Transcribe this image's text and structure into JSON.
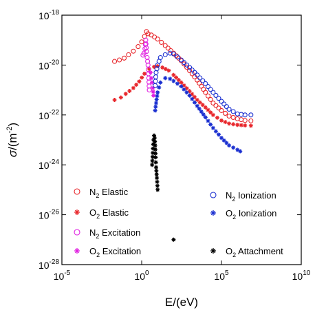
{
  "chart_data": {
    "type": "scatter",
    "xlabel": "E/(eV)",
    "ylabel_symbol": "σ",
    "ylabel_unit": "/(m",
    "ylabel_exp": "-2",
    "ylabel_close": ")",
    "xscale": "log",
    "yscale": "log",
    "xlim": [
      1e-05,
      10000000000
    ],
    "ylim": [
      1e-28,
      1e-18
    ],
    "grid": false,
    "legend_position": "bottom",
    "xticks": [
      {
        "value": 1e-05,
        "base": "10",
        "exp": "-5"
      },
      {
        "value": 1,
        "base": "10",
        "exp": "0"
      },
      {
        "value": 100000,
        "base": "10",
        "exp": "5"
      },
      {
        "value": 10000000000,
        "base": "10",
        "exp": "10"
      }
    ],
    "yticks": [
      {
        "value": 1e-18,
        "base": "10",
        "exp": "-18"
      },
      {
        "value": 1e-20,
        "base": "10",
        "exp": "-20"
      },
      {
        "value": 1e-22,
        "base": "10",
        "exp": "-22"
      },
      {
        "value": 1e-24,
        "base": "10",
        "exp": "-24"
      },
      {
        "value": 1e-26,
        "base": "10",
        "exp": "-26"
      },
      {
        "value": 1e-28,
        "base": "10",
        "exp": "-28"
      }
    ],
    "series": [
      {
        "name_main": "N",
        "name_sub": "2",
        "name_rest": " Elastic",
        "marker": "circle",
        "color": "#e8262b",
        "points": [
          [
            0.02,
            1.4e-20
          ],
          [
            0.04,
            1.6e-20
          ],
          [
            0.08,
            1.9e-20
          ],
          [
            0.15,
            2.6e-20
          ],
          [
            0.3,
            3.6e-20
          ],
          [
            0.6,
            5.5e-20
          ],
          [
            1.0,
            8.5e-20
          ],
          [
            1.5,
            1.4e-19
          ],
          [
            2.0,
            2.2e-19
          ],
          [
            2.5,
            1.8e-19
          ],
          [
            4,
            1.6e-19
          ],
          [
            10,
            1.1e-19
          ],
          [
            30,
            6e-20
          ],
          [
            100,
            3e-20
          ],
          [
            300,
            1.5e-20
          ],
          [
            1000,
            6e-21
          ],
          [
            3000,
            2.5e-21
          ],
          [
            10000,
            8e-22
          ],
          [
            30000,
            3e-22
          ],
          [
            100000,
            1.5e-22
          ],
          [
            300000,
            9e-23
          ],
          [
            1000000,
            7e-23
          ],
          [
            3000000,
            6e-23
          ],
          [
            7000000,
            5.8e-23
          ]
        ]
      },
      {
        "name_main": "O",
        "name_sub": "2",
        "name_rest": " Elastic",
        "marker": "star",
        "color": "#e8262b",
        "points": [
          [
            0.02,
            4e-22
          ],
          [
            0.05,
            5e-22
          ],
          [
            0.1,
            7e-22
          ],
          [
            0.3,
            1.2e-21
          ],
          [
            0.7,
            2.2e-21
          ],
          [
            1.5,
            4.5e-21
          ],
          [
            3,
            7e-21
          ],
          [
            6,
            8.5e-21
          ],
          [
            10,
            9e-21
          ],
          [
            20,
            8e-21
          ],
          [
            50,
            6e-21
          ],
          [
            100,
            4e-21
          ],
          [
            300,
            2e-21
          ],
          [
            1000,
            9e-22
          ],
          [
            3000,
            4e-22
          ],
          [
            10000,
            2e-22
          ],
          [
            30000,
            1e-22
          ],
          [
            100000,
            6e-23
          ],
          [
            300000,
            4.5e-23
          ],
          [
            1000000,
            4e-23
          ],
          [
            3000000,
            3.8e-23
          ],
          [
            7000000,
            3.7e-23
          ]
        ]
      },
      {
        "name_main": "N",
        "name_sub": "2",
        "name_rest": " Excitation",
        "marker": "circle",
        "color": "#e020e0",
        "points": [
          [
            1.2,
            2.5e-20
          ],
          [
            1.4,
            3e-20
          ],
          [
            1.6,
            4.5e-20
          ],
          [
            1.8,
            1e-19
          ],
          [
            2.0,
            3.5e-20
          ],
          [
            2.2,
            2e-20
          ],
          [
            2.5,
            1e-20
          ],
          [
            2.8,
            3e-21
          ],
          [
            3.0,
            1e-21
          ]
        ]
      },
      {
        "name_main": "O",
        "name_sub": "2",
        "name_rest": " Excitation",
        "marker": "star",
        "color": "#e020e0",
        "points": [
          [
            3.6,
            5e-21
          ],
          [
            4,
            3e-21
          ],
          [
            4.5,
            2e-21
          ],
          [
            5,
            1.2e-21
          ],
          [
            5.5,
            6e-22
          ]
        ]
      },
      {
        "name_main": "N",
        "name_sub": "2",
        "name_rest": " Ionization",
        "marker": "circle",
        "color": "#1a2fd0",
        "points": [
          [
            7,
            1.5e-21
          ],
          [
            8,
            5e-21
          ],
          [
            10,
            1e-20
          ],
          [
            15,
            2e-20
          ],
          [
            30,
            2.6e-20
          ],
          [
            60,
            3e-20
          ],
          [
            100,
            2.8e-20
          ],
          [
            300,
            1.6e-20
          ],
          [
            1000,
            8e-21
          ],
          [
            3000,
            4e-21
          ],
          [
            10000,
            1.8e-21
          ],
          [
            30000,
            8e-22
          ],
          [
            100000,
            3.5e-22
          ],
          [
            300000,
            1.7e-22
          ],
          [
            1000000,
            1.1e-22
          ],
          [
            3000000,
            1e-22
          ],
          [
            7000000,
            1e-22
          ]
        ]
      },
      {
        "name_main": "O",
        "name_sub": "2",
        "name_rest": " Ionization",
        "marker": "star",
        "color": "#1a2fd0",
        "points": [
          [
            7,
            1.5e-22
          ],
          [
            8,
            3e-22
          ],
          [
            10,
            8e-22
          ],
          [
            15,
            2e-21
          ],
          [
            30,
            3e-21
          ],
          [
            60,
            2.8e-21
          ],
          [
            100,
            2.3e-21
          ],
          [
            300,
            1.4e-21
          ],
          [
            1000,
            6e-22
          ],
          [
            3000,
            2.3e-22
          ],
          [
            10000,
            8e-23
          ],
          [
            30000,
            3e-23
          ],
          [
            100000,
            1.2e-23
          ],
          [
            300000,
            6e-24
          ],
          [
            1000000,
            4e-24
          ],
          [
            1500000,
            3.5e-24
          ]
        ]
      },
      {
        "name_main": "O",
        "name_sub": "2",
        "name_rest": " Attachment",
        "marker": "star",
        "color": "#000000",
        "points": [
          [
            4.5,
            1e-24
          ],
          [
            5,
            3e-24
          ],
          [
            5.5,
            1e-23
          ],
          [
            6,
            1.5e-23
          ],
          [
            6.5,
            1.2e-23
          ],
          [
            7,
            6e-24
          ],
          [
            7.5,
            2e-24
          ],
          [
            8,
            8e-25
          ],
          [
            9,
            3e-25
          ],
          [
            10,
            1e-25
          ],
          [
            100,
            1e-27
          ]
        ]
      }
    ]
  }
}
